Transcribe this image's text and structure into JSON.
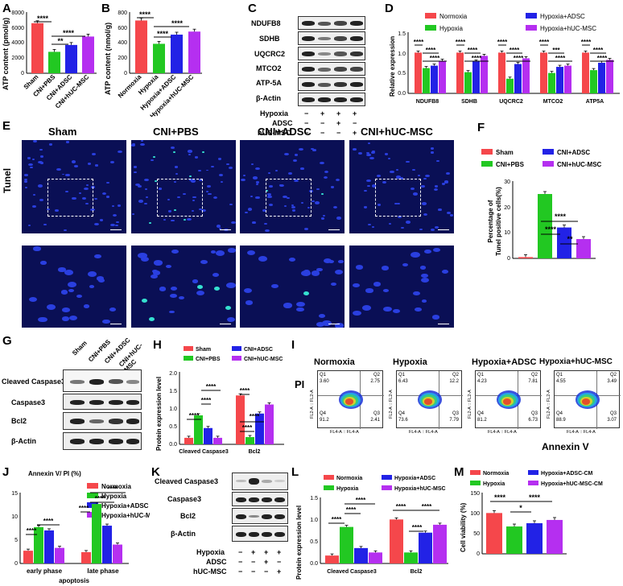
{
  "panel_letters": [
    "A",
    "B",
    "C",
    "D",
    "E",
    "F",
    "G",
    "H",
    "I",
    "J",
    "K",
    "L",
    "M"
  ],
  "colors": {
    "red": "#f5474b",
    "green": "#22c822",
    "blue": "#2222e6",
    "purple": "#b52ff0"
  },
  "panelA": {
    "ylabel": "ATP content (pmol/g)",
    "yticks": [
      "0",
      "2000",
      "4000",
      "6000",
      "8000"
    ],
    "cats": [
      "Sham",
      "CNI+PBS",
      "CNI+ADSC",
      "CNI+hUC-MSC"
    ],
    "values": [
      6550,
      2800,
      3700,
      4800
    ],
    "sig": [
      "****",
      "**",
      "****"
    ]
  },
  "panelB": {
    "ylabel": "ATP content (nmol/g)",
    "yticks": [
      "0",
      "200",
      "400",
      "600",
      "800"
    ],
    "cats": [
      "Normoxia",
      "Hypoxia",
      "Hypoxia+ADSC",
      "Hypoxia+hUC-MSC"
    ],
    "values": [
      690,
      385,
      505,
      545
    ],
    "sig": [
      "****",
      "****",
      "****"
    ]
  },
  "panelC": {
    "rows": [
      "NDUFB8",
      "SDHB",
      "UQCRC2",
      "MTCO2",
      "ATP-5A",
      "β-Actin"
    ],
    "treat": [
      "Hypoxia",
      "ADSC",
      "hUC-MSC"
    ],
    "signs": [
      [
        "−",
        "+",
        "+",
        "+"
      ],
      [
        "−",
        "−",
        "+",
        "−"
      ],
      [
        "−",
        "−",
        "−",
        "+"
      ]
    ]
  },
  "panelD": {
    "ylabel": "Relative expression",
    "yticks": [
      "0.0",
      "0.5",
      "1.0",
      "1.5"
    ],
    "legend": [
      "Normoxia",
      "Hypoxia",
      "Hypoxia+ADSC",
      "Hypoxia+hUC-MSC"
    ],
    "cats": [
      "NDUFB8",
      "SDHB",
      "UQCRC2",
      "MTCO2",
      "ATP5A"
    ],
    "sig": [
      "****",
      "****",
      "***"
    ]
  },
  "panelE": {
    "side": "Tunel",
    "titles": [
      "Sham",
      "CNI+PBS",
      "CNI+ADSC",
      "CNI+hUC-MSC"
    ]
  },
  "panelF": {
    "legend": [
      "Sham",
      "CNI+PBS",
      "CNI+ADSC",
      "CNI+hUC-MSC"
    ],
    "ylabel": "Percentage of Tunel positive cells(%)",
    "ylabel1": "Percentage of",
    "ylabel2": "Tunel positive cells(%)",
    "yticks": [
      "0",
      "10",
      "20",
      "30"
    ],
    "values": [
      0.5,
      25,
      12,
      7.5
    ],
    "sig": [
      "****",
      "****",
      "**"
    ]
  },
  "panelG": {
    "cols": [
      "Sham",
      "CNI+PBS",
      "CNI+ADSC",
      "CNI+hUC-MSC"
    ],
    "rows": [
      "Cleaved Caspase3",
      "Caspase3",
      "Bcl2",
      "β-Actin"
    ]
  },
  "panelH": {
    "legend": [
      "Sham",
      "CNI+PBS",
      "CNI+ADSC",
      "CNI+hUC-MSC"
    ],
    "ylabel": "Protein expression level",
    "yticks": [
      "0.0",
      "0.5",
      "1.0",
      "1.5",
      "2.0"
    ],
    "cats": [
      "Cleaved Caspase3",
      "Bcl2"
    ],
    "sig": "****"
  },
  "panelI": {
    "titles": [
      "Normoxia",
      "Hypoxia",
      "Hypoxia+ADSC",
      "Hypoxia+hUC-MSC"
    ],
    "q1": [
      "3.60",
      "6.43",
      "4.23",
      "4.55"
    ],
    "q2": [
      "2.75",
      "12.2",
      "7.81",
      "3.49"
    ],
    "q3": [
      "2.41",
      "7.79",
      "6.73",
      "3.07"
    ],
    "q4": [
      "91.2",
      "73.6",
      "81.2",
      "88.9"
    ],
    "ylabel": "PI",
    "xlabel": "Annexin V",
    "axis_x": "FL4-A :: FL4-A",
    "axis_y": "FL2-A :: FL2-A",
    "qnames": [
      "Q1",
      "Q2",
      "Q3",
      "Q4"
    ]
  },
  "panelJ": {
    "title": "Annexin V/ PI (%)",
    "yticks": [
      "0",
      "5",
      "10",
      "15"
    ],
    "legend": [
      "Normoxia",
      "Hypoxia",
      "Hypoxia+ADSC",
      "Hypoxia+hUC-MSC"
    ],
    "cats": [
      "early phase",
      "late phase"
    ],
    "xlabel": "apoptosis",
    "sig": "****"
  },
  "panelK": {
    "rows": [
      "Cleaved Caspase3",
      "Caspase3",
      "Bcl2",
      "β-Actin"
    ],
    "treat": [
      "Hypoxia",
      "ADSC",
      "hUC-MSC"
    ],
    "signs": [
      [
        "−",
        "+",
        "+",
        "+"
      ],
      [
        "−",
        "−",
        "+",
        "−"
      ],
      [
        "−",
        "−",
        "−",
        "+"
      ]
    ]
  },
  "panelL": {
    "legend": [
      "Normoxia",
      "Hypoxia",
      "Hypoxia+ADSC",
      "Hypoxia+hUC-MSC"
    ],
    "ylabel": "Protein expression level",
    "yticks": [
      "0.0",
      "0.5",
      "1.0",
      "1.5"
    ],
    "cats": [
      "Cleaved Caspase3",
      "Bcl2"
    ],
    "sig": "****"
  },
  "panelM": {
    "legend": [
      "Normoxia",
      "Hypoxia",
      "Hypoxia+ADSC-CM",
      "Hypoxia+hUC-MSC-CM"
    ],
    "ylabel": "Cell viability (%)",
    "yticks": [
      "0",
      "50",
      "100",
      "150"
    ],
    "values": [
      100,
      67,
      75,
      83
    ],
    "sig": [
      "****",
      "*",
      "****"
    ]
  },
  "chart_data": [
    {
      "id": "A",
      "type": "bar",
      "categories": [
        "Sham",
        "CNI+PBS",
        "CNI+ADSC",
        "CNI+hUC-MSC"
      ],
      "values": [
        6550,
        2800,
        3700,
        4800
      ],
      "ylabel": "ATP content (pmol/g)",
      "ylim": [
        0,
        8000
      ]
    },
    {
      "id": "B",
      "type": "bar",
      "categories": [
        "Normoxia",
        "Hypoxia",
        "Hypoxia+ADSC",
        "Hypoxia+hUC-MSC"
      ],
      "values": [
        690,
        385,
        505,
        545
      ],
      "ylabel": "ATP content (nmol/g)",
      "ylim": [
        0,
        800
      ]
    },
    {
      "id": "D",
      "type": "bar",
      "categories": [
        "NDUFB8",
        "SDHB",
        "UQCRC2",
        "MTCO2",
        "ATP5A"
      ],
      "ylabel": "Relative expression",
      "ylim": [
        0,
        1.5
      ],
      "series": [
        {
          "name": "Normoxia",
          "values": [
            1.0,
            1.0,
            1.0,
            1.0,
            1.0
          ]
        },
        {
          "name": "Hypoxia",
          "values": [
            0.62,
            0.52,
            0.36,
            0.5,
            0.57
          ]
        },
        {
          "name": "Hypoxia+ADSC",
          "values": [
            0.68,
            0.78,
            0.72,
            0.65,
            0.75
          ]
        },
        {
          "name": "Hypoxia+hUC-MSC",
          "values": [
            0.8,
            0.92,
            0.86,
            0.68,
            0.82
          ]
        }
      ]
    },
    {
      "id": "F",
      "type": "bar",
      "categories": [
        "Sham",
        "CNI+PBS",
        "CNI+ADSC",
        "CNI+hUC-MSC"
      ],
      "values": [
        0.5,
        25,
        12,
        7.5
      ],
      "ylabel": "Percentage of Tunel positive cells(%)",
      "ylim": [
        0,
        30
      ]
    },
    {
      "id": "H",
      "type": "bar",
      "categories": [
        "Cleaved Caspase3",
        "Bcl2"
      ],
      "ylabel": "Protein expression level",
      "ylim": [
        0,
        2.0
      ],
      "series": [
        {
          "name": "Sham",
          "values": [
            0.18,
            1.35
          ]
        },
        {
          "name": "CNI+PBS",
          "values": [
            0.8,
            0.2
          ]
        },
        {
          "name": "CNI+ADSC",
          "values": [
            0.45,
            0.85
          ]
        },
        {
          "name": "CNI+hUC-MSC",
          "values": [
            0.18,
            1.1
          ]
        }
      ]
    },
    {
      "id": "J",
      "type": "bar",
      "categories": [
        "early phase",
        "late phase"
      ],
      "xlabel": "apoptosis",
      "ylim": [
        0,
        15
      ],
      "series": [
        {
          "name": "Normoxia",
          "values": [
            2.7,
            2.4
          ]
        },
        {
          "name": "Hypoxia",
          "values": [
            7.7,
            12.6
          ]
        },
        {
          "name": "Hypoxia+ADSC",
          "values": [
            7.0,
            8.0
          ]
        },
        {
          "name": "Hypoxia+hUC-MSC",
          "values": [
            3.3,
            4.0
          ]
        }
      ]
    },
    {
      "id": "L",
      "type": "bar",
      "categories": [
        "Cleaved Caspase3",
        "Bcl2"
      ],
      "ylabel": "Protein expression level",
      "ylim": [
        0,
        1.5
      ],
      "series": [
        {
          "name": "Normoxia",
          "values": [
            0.18,
            1.0
          ]
        },
        {
          "name": "Hypoxia",
          "values": [
            0.83,
            0.25
          ]
        },
        {
          "name": "Hypoxia+ADSC",
          "values": [
            0.35,
            0.7
          ]
        },
        {
          "name": "Hypoxia+hUC-MSC",
          "values": [
            0.25,
            0.88
          ]
        }
      ]
    },
    {
      "id": "M",
      "type": "bar",
      "categories": [
        "Normoxia",
        "Hypoxia",
        "Hypoxia+ADSC-CM",
        "Hypoxia+hUC-MSC-CM"
      ],
      "values": [
        100,
        67,
        75,
        83
      ],
      "ylabel": "Cell viability (%)",
      "ylim": [
        0,
        150
      ]
    }
  ]
}
